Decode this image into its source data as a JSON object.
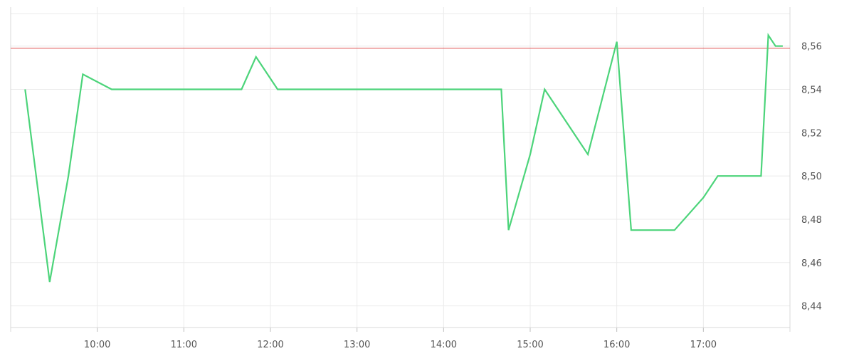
{
  "chart_data": {
    "type": "line",
    "title": "",
    "xlabel": "",
    "ylabel": "",
    "grid": true,
    "x_ticks": [
      "10:00",
      "11:00",
      "12:00",
      "13:00",
      "14:00",
      "15:00",
      "16:00",
      "17:00"
    ],
    "y_ticks": [
      "8,44",
      "8,46",
      "8,48",
      "8,50",
      "8,52",
      "8,54",
      "8,56"
    ],
    "ylim": [
      8.43,
      8.578
    ],
    "xlim": [
      "09:00",
      "18:00"
    ],
    "y_axis_position": "right",
    "reference_line": {
      "value": 8.559,
      "color": "#e05050"
    },
    "series": [
      {
        "color": "#4cd47a",
        "x": [
          "09:10",
          "09:27",
          "09:40",
          "09:50",
          "10:10",
          "10:30",
          "11:00",
          "11:40",
          "11:50",
          "12:05",
          "12:30",
          "13:00",
          "13:30",
          "14:00",
          "14:30",
          "14:40",
          "14:45",
          "15:00",
          "15:10",
          "15:25",
          "15:40",
          "16:00",
          "16:10",
          "16:30",
          "16:40",
          "17:00",
          "17:10",
          "17:30",
          "17:40",
          "17:45",
          "17:50",
          "17:55"
        ],
        "values": [
          8.54,
          8.451,
          8.5,
          8.547,
          8.54,
          8.54,
          8.54,
          8.54,
          8.555,
          8.54,
          8.54,
          8.54,
          8.54,
          8.54,
          8.54,
          8.54,
          8.475,
          8.51,
          8.54,
          8.525,
          8.51,
          8.562,
          8.475,
          8.475,
          8.475,
          8.49,
          8.5,
          8.5,
          8.5,
          8.565,
          8.56,
          8.56
        ]
      }
    ]
  }
}
